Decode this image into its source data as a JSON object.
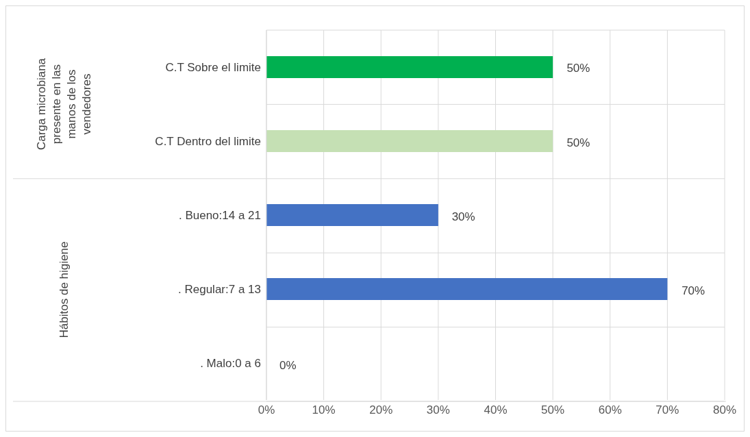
{
  "chart_data": {
    "type": "bar",
    "orientation": "horizontal",
    "categories": [
      "C.T Sobre el limite",
      "C.T Dentro del limite",
      ". Bueno:14 a 21",
      ". Regular:7 a 13",
      ". Malo:0 a 6"
    ],
    "values": [
      50,
      50,
      30,
      70,
      0
    ],
    "colors": [
      "#00b050",
      "#c5e0b4",
      "#4472c4",
      "#4472c4",
      "#4472c4"
    ],
    "value_labels": [
      "50%",
      "50%",
      "30%",
      "70%",
      "0%"
    ],
    "xlim": [
      0,
      80
    ],
    "xticks": [
      {
        "value": 0,
        "label": "0%"
      },
      {
        "value": 10,
        "label": "10%"
      },
      {
        "value": 20,
        "label": "20%"
      },
      {
        "value": 30,
        "label": "30%"
      },
      {
        "value": 40,
        "label": "40%"
      },
      {
        "value": 50,
        "label": "50%"
      },
      {
        "value": 60,
        "label": "60%"
      },
      {
        "value": 70,
        "label": "70%"
      },
      {
        "value": 80,
        "label": "80%"
      }
    ],
    "grid": true,
    "annotations": [
      "Carga microbiana presente en las manos de los vendedores",
      "Hábitos de higiene"
    ]
  }
}
